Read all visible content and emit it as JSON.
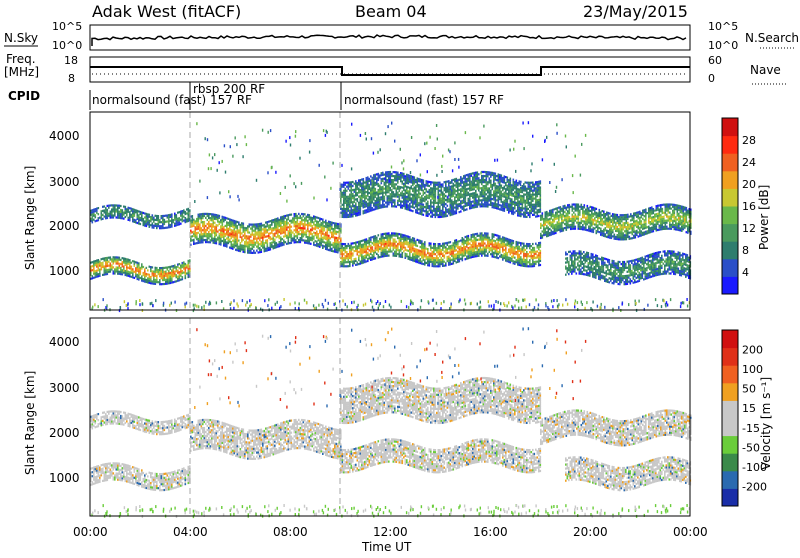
{
  "header": {
    "left": "Adak West (fitACF)",
    "center": "Beam 04",
    "right": "23/May/2015"
  },
  "panels": {
    "nsky_label": "N.Sky",
    "nsearch_label": "N.Search",
    "nsky_ticks": [
      "10^5",
      "10^0"
    ],
    "nsearch_ticks": [
      "10^5",
      "10^0"
    ],
    "freq_label": "Freq.",
    "freq_unit": "[MHz]",
    "freq_ticks": [
      "18",
      "8"
    ],
    "nave_label": "Nave",
    "nave_ticks": [
      "60",
      "0"
    ],
    "cpid_label": "CPID",
    "cpid_segments": [
      {
        "text": "normalsound (fast) 157 RF"
      },
      {
        "text": "rbsp 200 RF"
      },
      {
        "text": "normalsound (fast) 157 RF"
      }
    ]
  },
  "colorbars": {
    "power": {
      "label": "Power [dB]",
      "ticks": [
        "28",
        "24",
        "20",
        "16",
        "12",
        "8",
        "4"
      ],
      "colors": [
        "#1a1aff",
        "#2a4fc8",
        "#2e7d6e",
        "#4a9a5e",
        "#6ab84a",
        "#c8c832",
        "#f0a020",
        "#f06020",
        "#ff2a10",
        "#d01010"
      ]
    },
    "velocity": {
      "label": "Velocity [m s⁻¹]",
      "ticks": [
        "200",
        "100",
        "50",
        "15",
        "-15",
        "-50",
        "-100",
        "-200"
      ],
      "colors": [
        "#1a2ea8",
        "#2a6ab0",
        "#3a8a4a",
        "#6acd3a",
        "#c8c8c8",
        "#c8c8c8",
        "#f0a020",
        "#f06020",
        "#e03018",
        "#d01010"
      ]
    }
  },
  "chart_data": [
    {
      "type": "heatmap",
      "name": "power-panel",
      "ylabel": "Slant Range [km]",
      "yticks": [
        "4000",
        "3000",
        "2000",
        "1000"
      ],
      "xlim": [
        0,
        24
      ],
      "ylim": [
        180,
        4600
      ],
      "bands": [
        {
          "x": [
            0,
            4
          ],
          "y": [
            900,
            1300
          ],
          "level": "high"
        },
        {
          "x": [
            0,
            4
          ],
          "y": [
            2150,
            2450
          ],
          "level": "low"
        },
        {
          "x": [
            4,
            10
          ],
          "y": [
            1600,
            2250
          ],
          "level": "high"
        },
        {
          "x": [
            10,
            18
          ],
          "y": [
            1300,
            1800
          ],
          "level": "high"
        },
        {
          "x": [
            10,
            18
          ],
          "y": [
            2400,
            3200
          ],
          "level": "low"
        },
        {
          "x": [
            18,
            24
          ],
          "y": [
            1900,
            2450
          ],
          "level": "mid"
        },
        {
          "x": [
            19,
            24
          ],
          "y": [
            900,
            1400
          ],
          "level": "low"
        }
      ]
    },
    {
      "type": "heatmap",
      "name": "velocity-panel",
      "ylabel": "Slant Range [km]",
      "yticks": [
        "4000",
        "3000",
        "2000",
        "1000"
      ],
      "xlim": [
        0,
        24
      ],
      "ylim": [
        180,
        4600
      ]
    }
  ],
  "xaxis": {
    "label": "Time UT",
    "ticks": [
      "00:00",
      "04:00",
      "08:00",
      "12:00",
      "16:00",
      "20:00",
      "00:00"
    ]
  }
}
